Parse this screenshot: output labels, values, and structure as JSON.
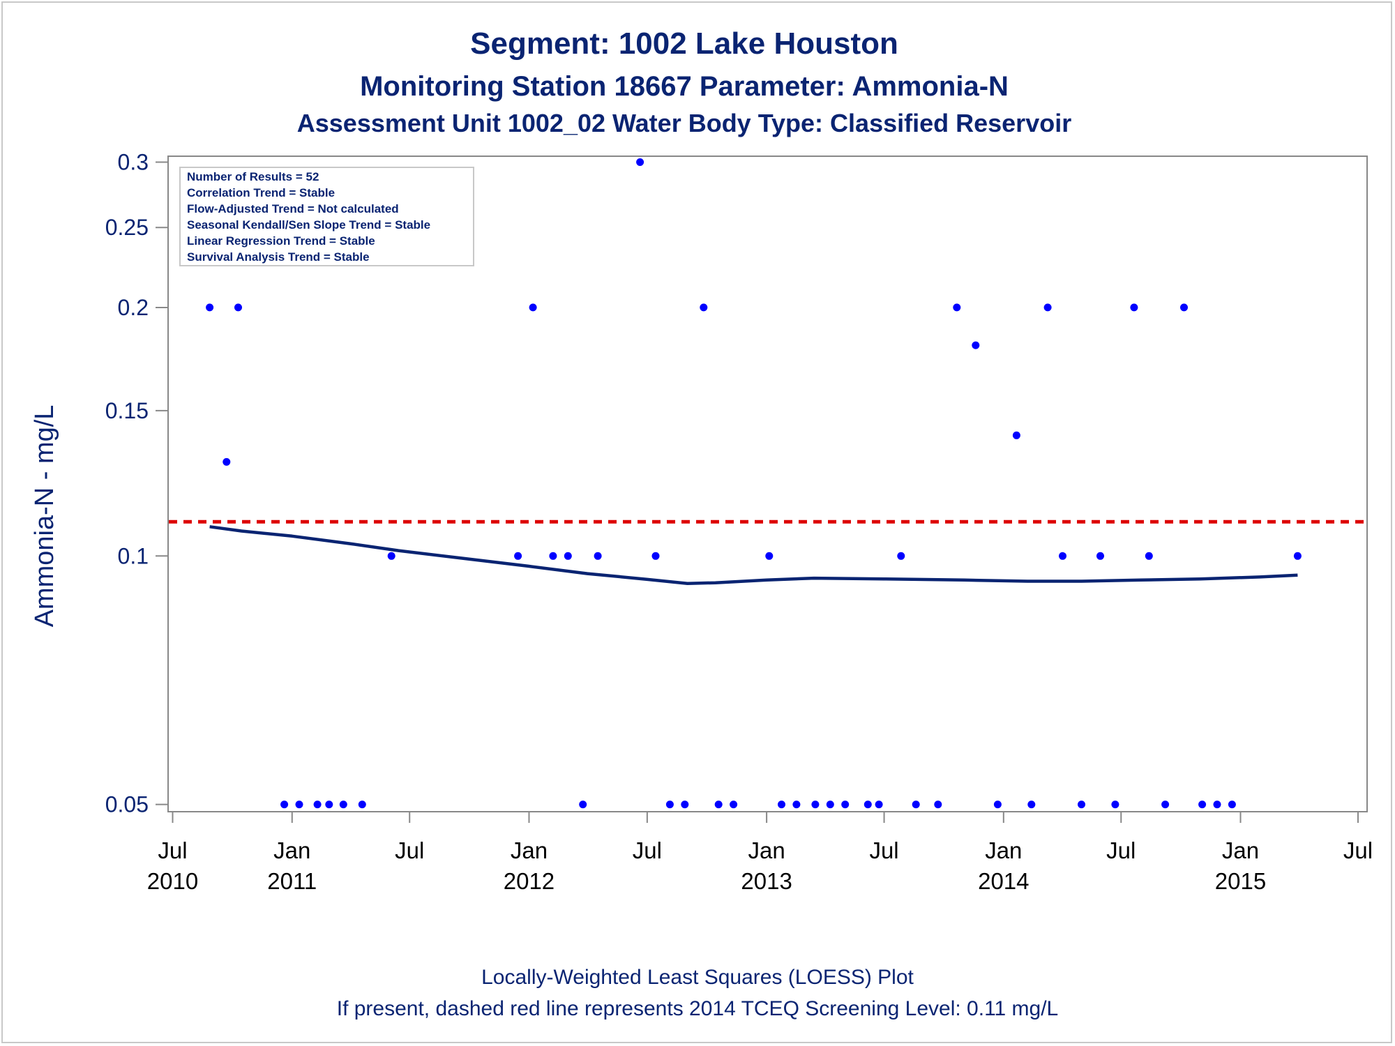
{
  "chart_data": {
    "type": "scatter",
    "title": "Segment: 1002  Lake Houston",
    "subtitle": "Monitoring Station 18667 Parameter: Ammonia-N",
    "subtitle2": "Assessment Unit 1002_02   Water Body Type: Classified Reservoir",
    "ylabel": "Ammonia-N - mg/L",
    "y_scale": "log",
    "ylim": [
      0.049,
      0.305
    ],
    "y_ticks": [
      0.05,
      0.1,
      0.15,
      0.2,
      0.25,
      0.3
    ],
    "y_tick_labels": [
      "0.05",
      "0.1",
      "0.15",
      "0.2",
      "0.25",
      "0.3"
    ],
    "xlim": [
      "2010-06-24",
      "2015-07-15"
    ],
    "x_ticks": [
      {
        "date": "2010-07-01",
        "month": "Jul",
        "year": "2010"
      },
      {
        "date": "2011-01-01",
        "month": "Jan",
        "year": "2011"
      },
      {
        "date": "2011-07-01",
        "month": "Jul",
        "year": ""
      },
      {
        "date": "2012-01-01",
        "month": "Jan",
        "year": "2012"
      },
      {
        "date": "2012-07-01",
        "month": "Jul",
        "year": ""
      },
      {
        "date": "2013-01-01",
        "month": "Jan",
        "year": "2013"
      },
      {
        "date": "2013-07-01",
        "month": "Jul",
        "year": ""
      },
      {
        "date": "2014-01-01",
        "month": "Jan",
        "year": "2014"
      },
      {
        "date": "2014-07-01",
        "month": "Jul",
        "year": ""
      },
      {
        "date": "2015-01-01",
        "month": "Jan",
        "year": "2015"
      },
      {
        "date": "2015-07-01",
        "month": "Jul",
        "year": ""
      }
    ],
    "grid": false,
    "info_box": [
      "Number of Results = 52",
      "Correlation Trend = Stable",
      "Flow-Adjusted Trend = Not calculated",
      "Seasonal Kendall/Sen Slope Trend = Stable",
      "Linear Regression Trend = Stable",
      "Survival Analysis Trend = Stable"
    ],
    "info_box_position": "top-left",
    "screening_level": {
      "value": 0.11,
      "color": "#dd0000",
      "style": "dashed"
    },
    "points": [
      {
        "x": "2010-08-27",
        "y": 0.2
      },
      {
        "x": "2010-09-22",
        "y": 0.13
      },
      {
        "x": "2010-10-10",
        "y": 0.2
      },
      {
        "x": "2010-12-20",
        "y": 0.05
      },
      {
        "x": "2011-01-12",
        "y": 0.05
      },
      {
        "x": "2011-02-09",
        "y": 0.05
      },
      {
        "x": "2011-02-27",
        "y": 0.05
      },
      {
        "x": "2011-03-21",
        "y": 0.05
      },
      {
        "x": "2011-04-19",
        "y": 0.05
      },
      {
        "x": "2011-06-03",
        "y": 0.1
      },
      {
        "x": "2011-12-15",
        "y": 0.1
      },
      {
        "x": "2012-01-07",
        "y": 0.2
      },
      {
        "x": "2012-02-07",
        "y": 0.1
      },
      {
        "x": "2012-03-01",
        "y": 0.1
      },
      {
        "x": "2012-03-24",
        "y": 0.05
      },
      {
        "x": "2012-04-16",
        "y": 0.1
      },
      {
        "x": "2012-06-20",
        "y": 0.3
      },
      {
        "x": "2012-07-14",
        "y": 0.1
      },
      {
        "x": "2012-08-05",
        "y": 0.05
      },
      {
        "x": "2012-08-28",
        "y": 0.05
      },
      {
        "x": "2012-09-26",
        "y": 0.2
      },
      {
        "x": "2012-10-19",
        "y": 0.05
      },
      {
        "x": "2012-11-11",
        "y": 0.05
      },
      {
        "x": "2013-01-05",
        "y": 0.1
      },
      {
        "x": "2013-01-24",
        "y": 0.05
      },
      {
        "x": "2013-02-16",
        "y": 0.05
      },
      {
        "x": "2013-03-17",
        "y": 0.05
      },
      {
        "x": "2013-04-09",
        "y": 0.05
      },
      {
        "x": "2013-05-02",
        "y": 0.05
      },
      {
        "x": "2013-06-06",
        "y": 0.05
      },
      {
        "x": "2013-06-23",
        "y": 0.05
      },
      {
        "x": "2013-07-27",
        "y": 0.1
      },
      {
        "x": "2013-08-19",
        "y": 0.05
      },
      {
        "x": "2013-09-22",
        "y": 0.05
      },
      {
        "x": "2013-10-21",
        "y": 0.2
      },
      {
        "x": "2013-11-19",
        "y": 0.18
      },
      {
        "x": "2013-12-23",
        "y": 0.05
      },
      {
        "x": "2014-01-21",
        "y": 0.14
      },
      {
        "x": "2014-02-13",
        "y": 0.05
      },
      {
        "x": "2014-03-10",
        "y": 0.2
      },
      {
        "x": "2014-04-02",
        "y": 0.1
      },
      {
        "x": "2014-05-01",
        "y": 0.05
      },
      {
        "x": "2014-05-30",
        "y": 0.1
      },
      {
        "x": "2014-06-22",
        "y": 0.05
      },
      {
        "x": "2014-07-21",
        "y": 0.2
      },
      {
        "x": "2014-08-13",
        "y": 0.1
      },
      {
        "x": "2014-09-07",
        "y": 0.05
      },
      {
        "x": "2014-10-06",
        "y": 0.2
      },
      {
        "x": "2014-11-03",
        "y": 0.05
      },
      {
        "x": "2014-11-26",
        "y": 0.05
      },
      {
        "x": "2014-12-19",
        "y": 0.05
      },
      {
        "x": "2015-03-30",
        "y": 0.1
      }
    ],
    "loess": [
      {
        "x": "2010-08-27",
        "y": 0.1085
      },
      {
        "x": "2010-10-15",
        "y": 0.1072
      },
      {
        "x": "2011-01-01",
        "y": 0.1057
      },
      {
        "x": "2011-03-31",
        "y": 0.1035
      },
      {
        "x": "2011-06-14",
        "y": 0.1015
      },
      {
        "x": "2011-09-14",
        "y": 0.0995
      },
      {
        "x": "2011-12-31",
        "y": 0.0972
      },
      {
        "x": "2012-03-31",
        "y": 0.0952
      },
      {
        "x": "2012-06-30",
        "y": 0.0937
      },
      {
        "x": "2012-09-01",
        "y": 0.0926
      },
      {
        "x": "2012-10-14",
        "y": 0.0928
      },
      {
        "x": "2013-01-01",
        "y": 0.0935
      },
      {
        "x": "2013-03-15",
        "y": 0.094
      },
      {
        "x": "2013-07-01",
        "y": 0.0938
      },
      {
        "x": "2013-11-01",
        "y": 0.0935
      },
      {
        "x": "2014-02-07",
        "y": 0.0932
      },
      {
        "x": "2014-05-01",
        "y": 0.0932
      },
      {
        "x": "2014-07-31",
        "y": 0.0935
      },
      {
        "x": "2014-10-31",
        "y": 0.0938
      },
      {
        "x": "2015-01-31",
        "y": 0.0943
      },
      {
        "x": "2015-03-30",
        "y": 0.0948
      }
    ],
    "colors": {
      "points": "#0000ff",
      "loess": "#0a2472",
      "screening": "#dd0000",
      "text": "#0a2472",
      "axis": "#888888"
    }
  },
  "footer": {
    "line1": "Locally-Weighted Least Squares (LOESS) Plot",
    "line2": "If present, dashed red line represents 2014 TCEQ Screening Level: 0.11 mg/L"
  }
}
